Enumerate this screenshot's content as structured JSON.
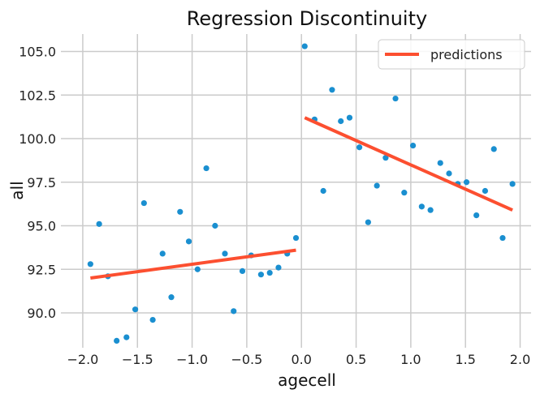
{
  "chart_data": {
    "type": "scatter",
    "title": "Regression Discontinuity",
    "xlabel": "agecell",
    "ylabel": "all",
    "xlim": [
      -2.2,
      2.1
    ],
    "ylim": [
      88.0,
      106.0
    ],
    "xticks": [
      -2.0,
      -1.5,
      -1.0,
      -0.5,
      0.0,
      0.5,
      1.0,
      1.5,
      2.0
    ],
    "xtick_labels": [
      "−2.0",
      "−1.5",
      "−1.0",
      "−0.5",
      "0.0",
      "0.5",
      "1.0",
      "1.5",
      "2.0"
    ],
    "yticks": [
      90.0,
      92.5,
      95.0,
      97.5,
      100.0,
      102.5,
      105.0
    ],
    "ytick_labels": [
      "90.0",
      "92.5",
      "95.0",
      "97.5",
      "100.0",
      "102.5",
      "105.0"
    ],
    "grid": true,
    "legend_position": "top-right",
    "colors": {
      "points": "#1a8fd0",
      "line": "#fc4f30",
      "grid": "#cbcbcb",
      "background": "#ffffff"
    },
    "series": [
      {
        "type": "scatter",
        "points": [
          [
            -1.93,
            92.8
          ],
          [
            -1.85,
            95.1
          ],
          [
            -1.77,
            92.1
          ],
          [
            -1.69,
            88.4
          ],
          [
            -1.6,
            88.6
          ],
          [
            -1.52,
            90.2
          ],
          [
            -1.44,
            96.3
          ],
          [
            -1.36,
            89.6
          ],
          [
            -1.27,
            93.4
          ],
          [
            -1.19,
            90.9
          ],
          [
            -1.11,
            95.8
          ],
          [
            -1.03,
            94.1
          ],
          [
            -0.95,
            92.5
          ],
          [
            -0.87,
            98.3
          ],
          [
            -0.79,
            95.0
          ],
          [
            -0.7,
            93.4
          ],
          [
            -0.62,
            90.1
          ],
          [
            -0.54,
            92.4
          ],
          [
            -0.46,
            93.3
          ],
          [
            -0.37,
            92.2
          ],
          [
            -0.29,
            92.3
          ],
          [
            -0.21,
            92.6
          ],
          [
            -0.13,
            93.4
          ],
          [
            -0.05,
            94.3
          ],
          [
            0.03,
            105.3
          ],
          [
            0.12,
            101.1
          ],
          [
            0.2,
            97.0
          ],
          [
            0.28,
            102.8
          ],
          [
            0.36,
            101.0
          ],
          [
            0.44,
            101.2
          ],
          [
            0.53,
            99.5
          ],
          [
            0.61,
            95.2
          ],
          [
            0.69,
            97.3
          ],
          [
            0.77,
            98.9
          ],
          [
            0.86,
            102.3
          ],
          [
            0.94,
            96.9
          ],
          [
            1.02,
            99.6
          ],
          [
            1.1,
            96.1
          ],
          [
            1.18,
            95.9
          ],
          [
            1.27,
            98.6
          ],
          [
            1.35,
            98.0
          ],
          [
            1.43,
            97.4
          ],
          [
            1.51,
            97.5
          ],
          [
            1.6,
            95.6
          ],
          [
            1.68,
            97.0
          ],
          [
            1.76,
            99.4
          ],
          [
            1.84,
            94.3
          ],
          [
            1.93,
            97.4
          ]
        ]
      },
      {
        "type": "line",
        "name": "predictions",
        "segments": [
          [
            [
              -1.93,
              92.0
            ],
            [
              -0.05,
              93.6
            ]
          ],
          [
            [
              0.03,
              101.2
            ],
            [
              1.93,
              95.9
            ]
          ]
        ]
      }
    ]
  }
}
